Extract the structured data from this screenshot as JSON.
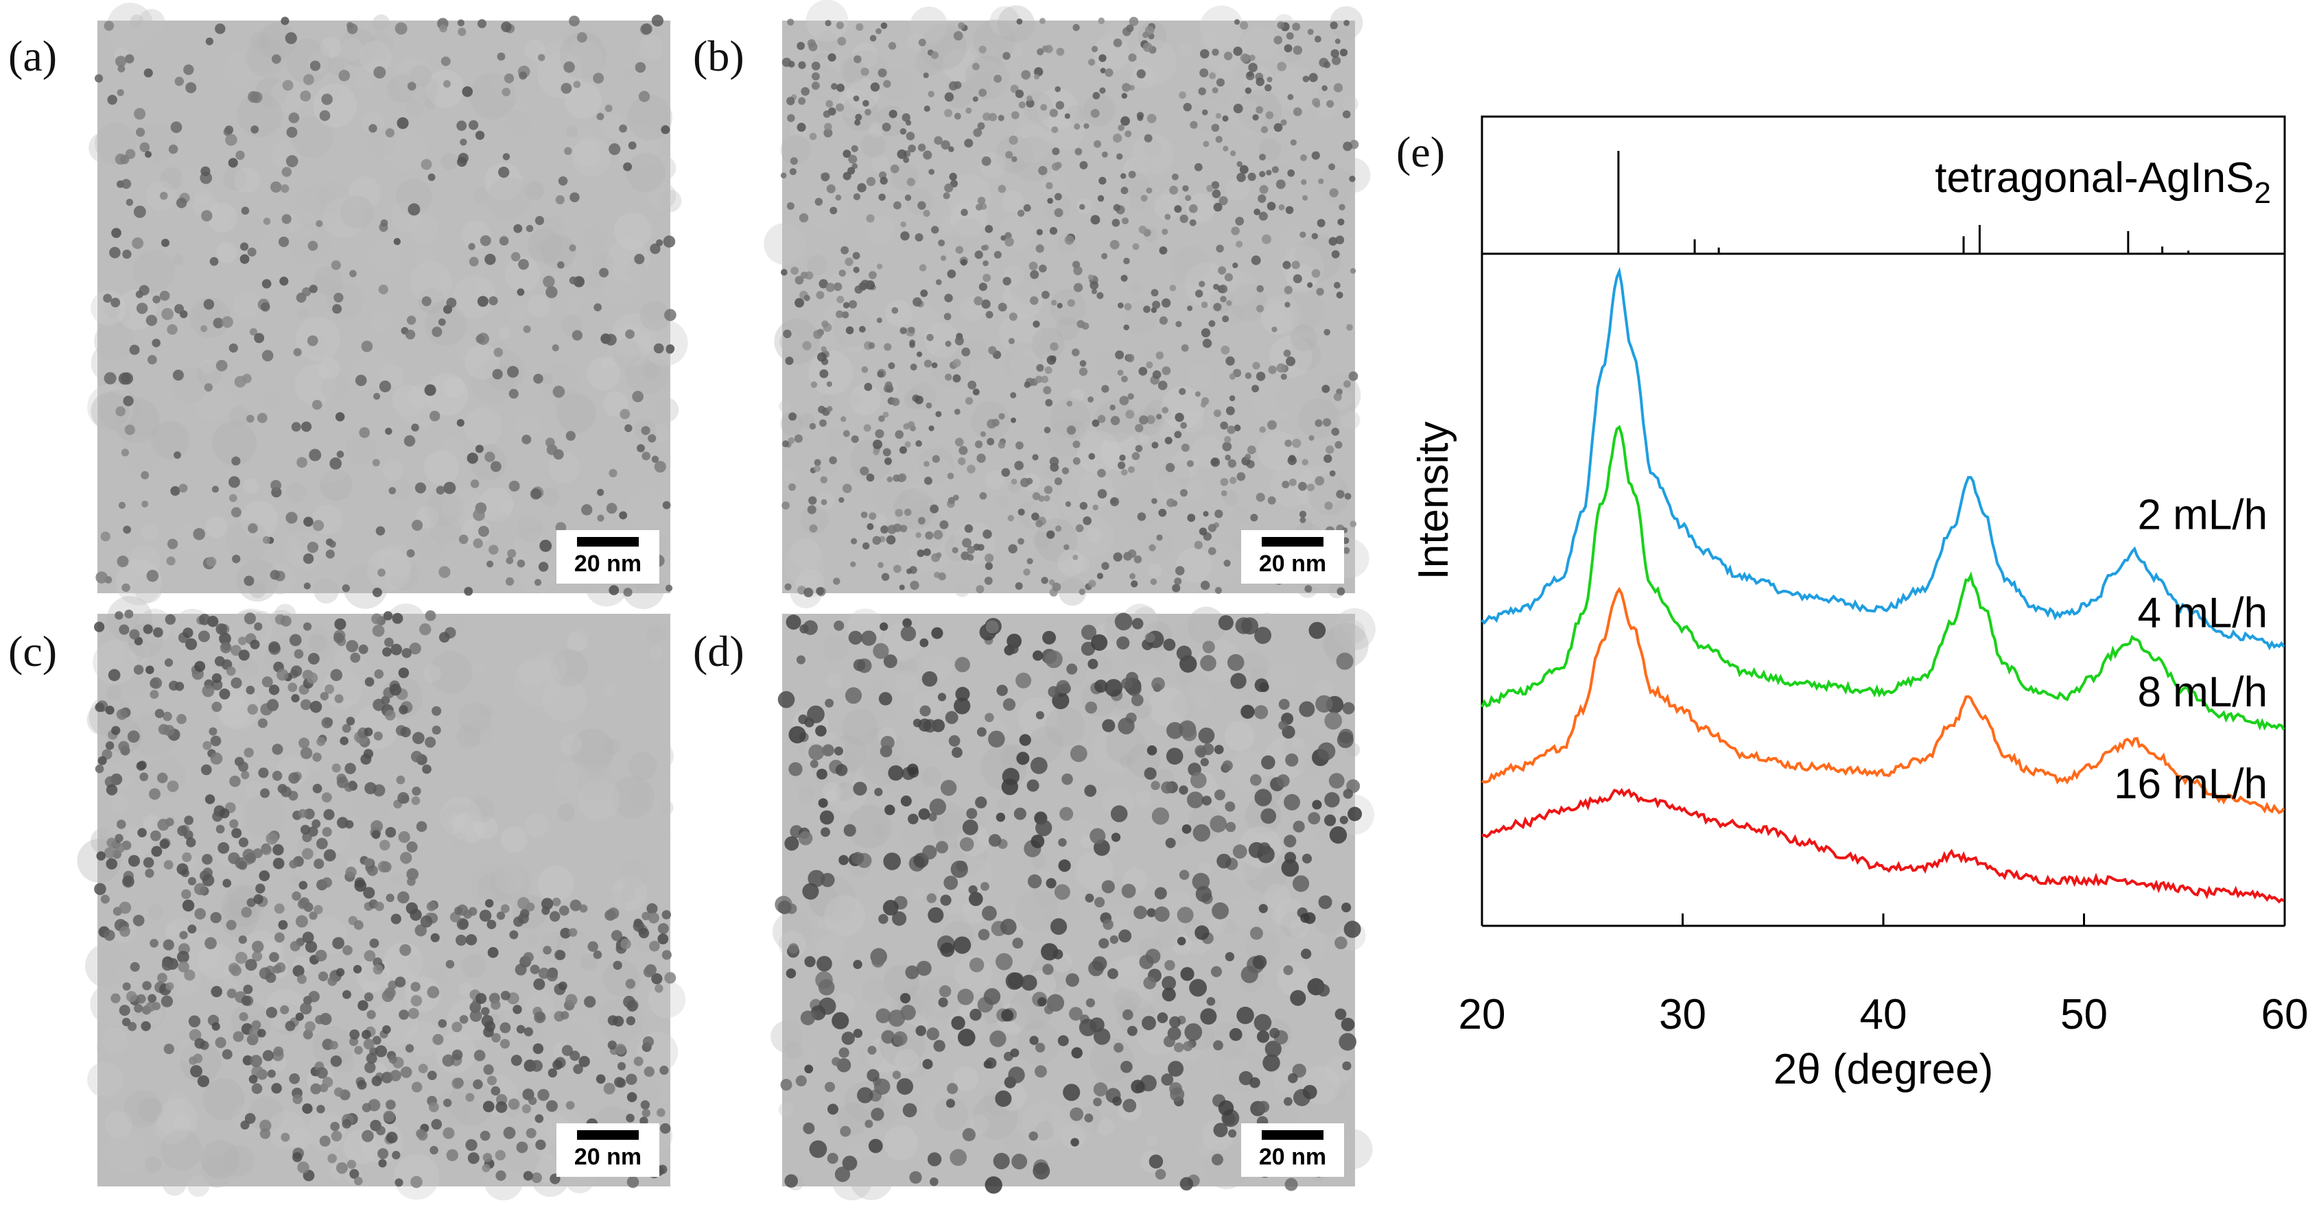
{
  "panels": {
    "a": {
      "label": "(a)",
      "scale_bar": "20 nm"
    },
    "b": {
      "label": "(b)",
      "scale_bar": "20 nm"
    },
    "c": {
      "label": "(c)",
      "scale_bar": "20 nm"
    },
    "d": {
      "label": "(d)",
      "scale_bar": "20 nm"
    },
    "e": {
      "label": "(e)"
    }
  },
  "chart_data": {
    "type": "line",
    "xlabel": "2θ (degree)",
    "ylabel": "Intensity",
    "xlim": [
      20,
      60
    ],
    "x_ticks": [
      20,
      30,
      40,
      50,
      60
    ],
    "reference": {
      "name": "tetragonal-AgInS",
      "subscript": "2",
      "peaks": [
        {
          "x": 26.8,
          "rel": 1.0
        },
        {
          "x": 30.6,
          "rel": 0.14
        },
        {
          "x": 31.8,
          "rel": 0.06
        },
        {
          "x": 44.0,
          "rel": 0.17
        },
        {
          "x": 44.8,
          "rel": 0.28
        },
        {
          "x": 52.2,
          "rel": 0.22
        },
        {
          "x": 53.9,
          "rel": 0.07
        },
        {
          "x": 55.2,
          "rel": 0.03
        }
      ]
    },
    "series": [
      {
        "name": "2 mL/h",
        "color": "#1f9ee0",
        "x": [
          20,
          22,
          24,
          25,
          26,
          26.8,
          27.5,
          28.5,
          30,
          31,
          33,
          36,
          40,
          42,
          43.5,
          44.3,
          45,
          46,
          47.5,
          49,
          50.5,
          51.5,
          52.5,
          53.5,
          55,
          57,
          60
        ],
        "y": [
          0.45,
          0.47,
          0.52,
          0.62,
          0.85,
          1.0,
          0.88,
          0.68,
          0.6,
          0.56,
          0.52,
          0.49,
          0.47,
          0.5,
          0.6,
          0.68,
          0.62,
          0.52,
          0.47,
          0.46,
          0.48,
          0.53,
          0.56,
          0.52,
          0.47,
          0.43,
          0.41
        ]
      },
      {
        "name": "4 mL/h",
        "color": "#1ad11a",
        "x": [
          20,
          22,
          24,
          25,
          26,
          26.8,
          27.5,
          28.5,
          30,
          31,
          33,
          36,
          40,
          42,
          43.5,
          44.3,
          45,
          46,
          47.5,
          49,
          50.5,
          51.5,
          52.5,
          53.5,
          55,
          57,
          60
        ],
        "y": [
          0.32,
          0.34,
          0.38,
          0.46,
          0.64,
          0.76,
          0.66,
          0.5,
          0.44,
          0.41,
          0.37,
          0.35,
          0.34,
          0.36,
          0.45,
          0.52,
          0.47,
          0.38,
          0.34,
          0.33,
          0.36,
          0.4,
          0.42,
          0.39,
          0.34,
          0.3,
          0.28
        ]
      },
      {
        "name": "8 mL/h",
        "color": "#ff6a1a",
        "x": [
          20,
          22,
          24,
          25,
          26,
          26.8,
          27.5,
          28.5,
          30,
          31,
          33,
          36,
          40,
          42,
          43.5,
          44.3,
          45,
          46,
          47.5,
          49,
          50.5,
          51.5,
          52.5,
          53.5,
          55,
          57,
          60
        ],
        "y": [
          0.2,
          0.22,
          0.25,
          0.31,
          0.42,
          0.5,
          0.44,
          0.34,
          0.31,
          0.28,
          0.24,
          0.22,
          0.21,
          0.23,
          0.29,
          0.33,
          0.3,
          0.24,
          0.21,
          0.2,
          0.22,
          0.25,
          0.26,
          0.24,
          0.2,
          0.17,
          0.15
        ]
      },
      {
        "name": "16 mL/h",
        "color": "#ee1515",
        "x": [
          20,
          22,
          24,
          25,
          26,
          27,
          28,
          29,
          30,
          32,
          34,
          36,
          38,
          40,
          42,
          43.5,
          44.5,
          46,
          48,
          50,
          52,
          54,
          56,
          58,
          60
        ],
        "y": [
          0.11,
          0.13,
          0.15,
          0.16,
          0.17,
          0.18,
          0.17,
          0.16,
          0.15,
          0.13,
          0.12,
          0.1,
          0.08,
          0.06,
          0.06,
          0.08,
          0.07,
          0.05,
          0.04,
          0.04,
          0.04,
          0.03,
          0.02,
          0.02,
          0.01
        ]
      }
    ]
  }
}
